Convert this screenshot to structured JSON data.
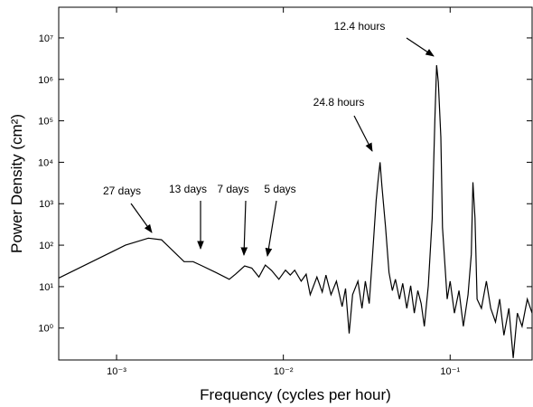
{
  "chart_data": {
    "type": "line",
    "xlabel": "Frequency (cycles per hour)",
    "ylabel": "Power Density (cm²)",
    "xscale": "log",
    "yscale": "log",
    "xlim": [
      0.00045,
      0.31
    ],
    "ylim": [
      0.17,
      55000000
    ],
    "xticks": [
      {
        "value": 0.001,
        "label": "10⁻³"
      },
      {
        "value": 0.01,
        "label": "10⁻²"
      },
      {
        "value": 0.1,
        "label": "10⁻¹"
      }
    ],
    "yticks": [
      {
        "value": 1,
        "label": "10⁰"
      },
      {
        "value": 10,
        "label": "10¹"
      },
      {
        "value": 100,
        "label": "10²"
      },
      {
        "value": 1000,
        "label": "10³"
      },
      {
        "value": 10000,
        "label": "10⁴"
      },
      {
        "value": 100000,
        "label": "10⁵"
      },
      {
        "value": 1000000,
        "label": "10⁶"
      },
      {
        "value": 10000000,
        "label": "10⁷"
      }
    ],
    "color": "#000000",
    "x": [
      0.000445,
      0.00113,
      0.00155,
      0.00186,
      0.00254,
      0.00288,
      0.00326,
      0.00393,
      0.00474,
      0.00517,
      0.00586,
      0.00647,
      0.00714,
      0.0078,
      0.0085,
      0.0094,
      0.0103,
      0.011,
      0.0117,
      0.0128,
      0.0137,
      0.0145,
      0.0159,
      0.0171,
      0.018,
      0.0193,
      0.0208,
      0.0225,
      0.0236,
      0.0248,
      0.026,
      0.028,
      0.0296,
      0.031,
      0.0327,
      0.034,
      0.036,
      0.0369,
      0.038,
      0.039,
      0.041,
      0.043,
      0.045,
      0.047,
      0.0497,
      0.052,
      0.055,
      0.058,
      0.061,
      0.064,
      0.067,
      0.07,
      0.074,
      0.078,
      0.081,
      0.083,
      0.085,
      0.088,
      0.09,
      0.096,
      0.1,
      0.106,
      0.113,
      0.12,
      0.128,
      0.134,
      0.137,
      0.141,
      0.145,
      0.154,
      0.165,
      0.175,
      0.187,
      0.198,
      0.21,
      0.225,
      0.239,
      0.253,
      0.27,
      0.29,
      0.31
    ],
    "values": [
      15.7,
      100,
      148,
      135,
      40,
      40,
      31.6,
      22,
      15,
      20,
      31.6,
      28,
      17,
      33,
      24.6,
      15,
      25,
      19,
      25,
      13.5,
      20,
      6.4,
      17,
      7.4,
      19,
      6.4,
      13.5,
      3.3,
      9,
      0.74,
      6.4,
      13.5,
      3,
      13.5,
      3.9,
      37,
      1200,
      3300,
      10000,
      2600,
      270,
      22,
      8,
      15,
      5,
      12,
      3,
      10.5,
      2.3,
      8,
      3.9,
      1.1,
      10.5,
      450,
      110000,
      2200000,
      860000,
      40000,
      270,
      5,
      13.5,
      2.3,
      8,
      1.1,
      6.4,
      60,
      3300,
      450,
      5,
      3,
      13.5,
      3,
      1.4,
      5,
      0.67,
      3,
      0.19,
      2.3,
      1.1,
      5,
      2.3
    ],
    "annotations": [
      "27 days",
      "13 days",
      "7 days",
      "5 days",
      "24.8 hours",
      "12.4 hours"
    ]
  }
}
